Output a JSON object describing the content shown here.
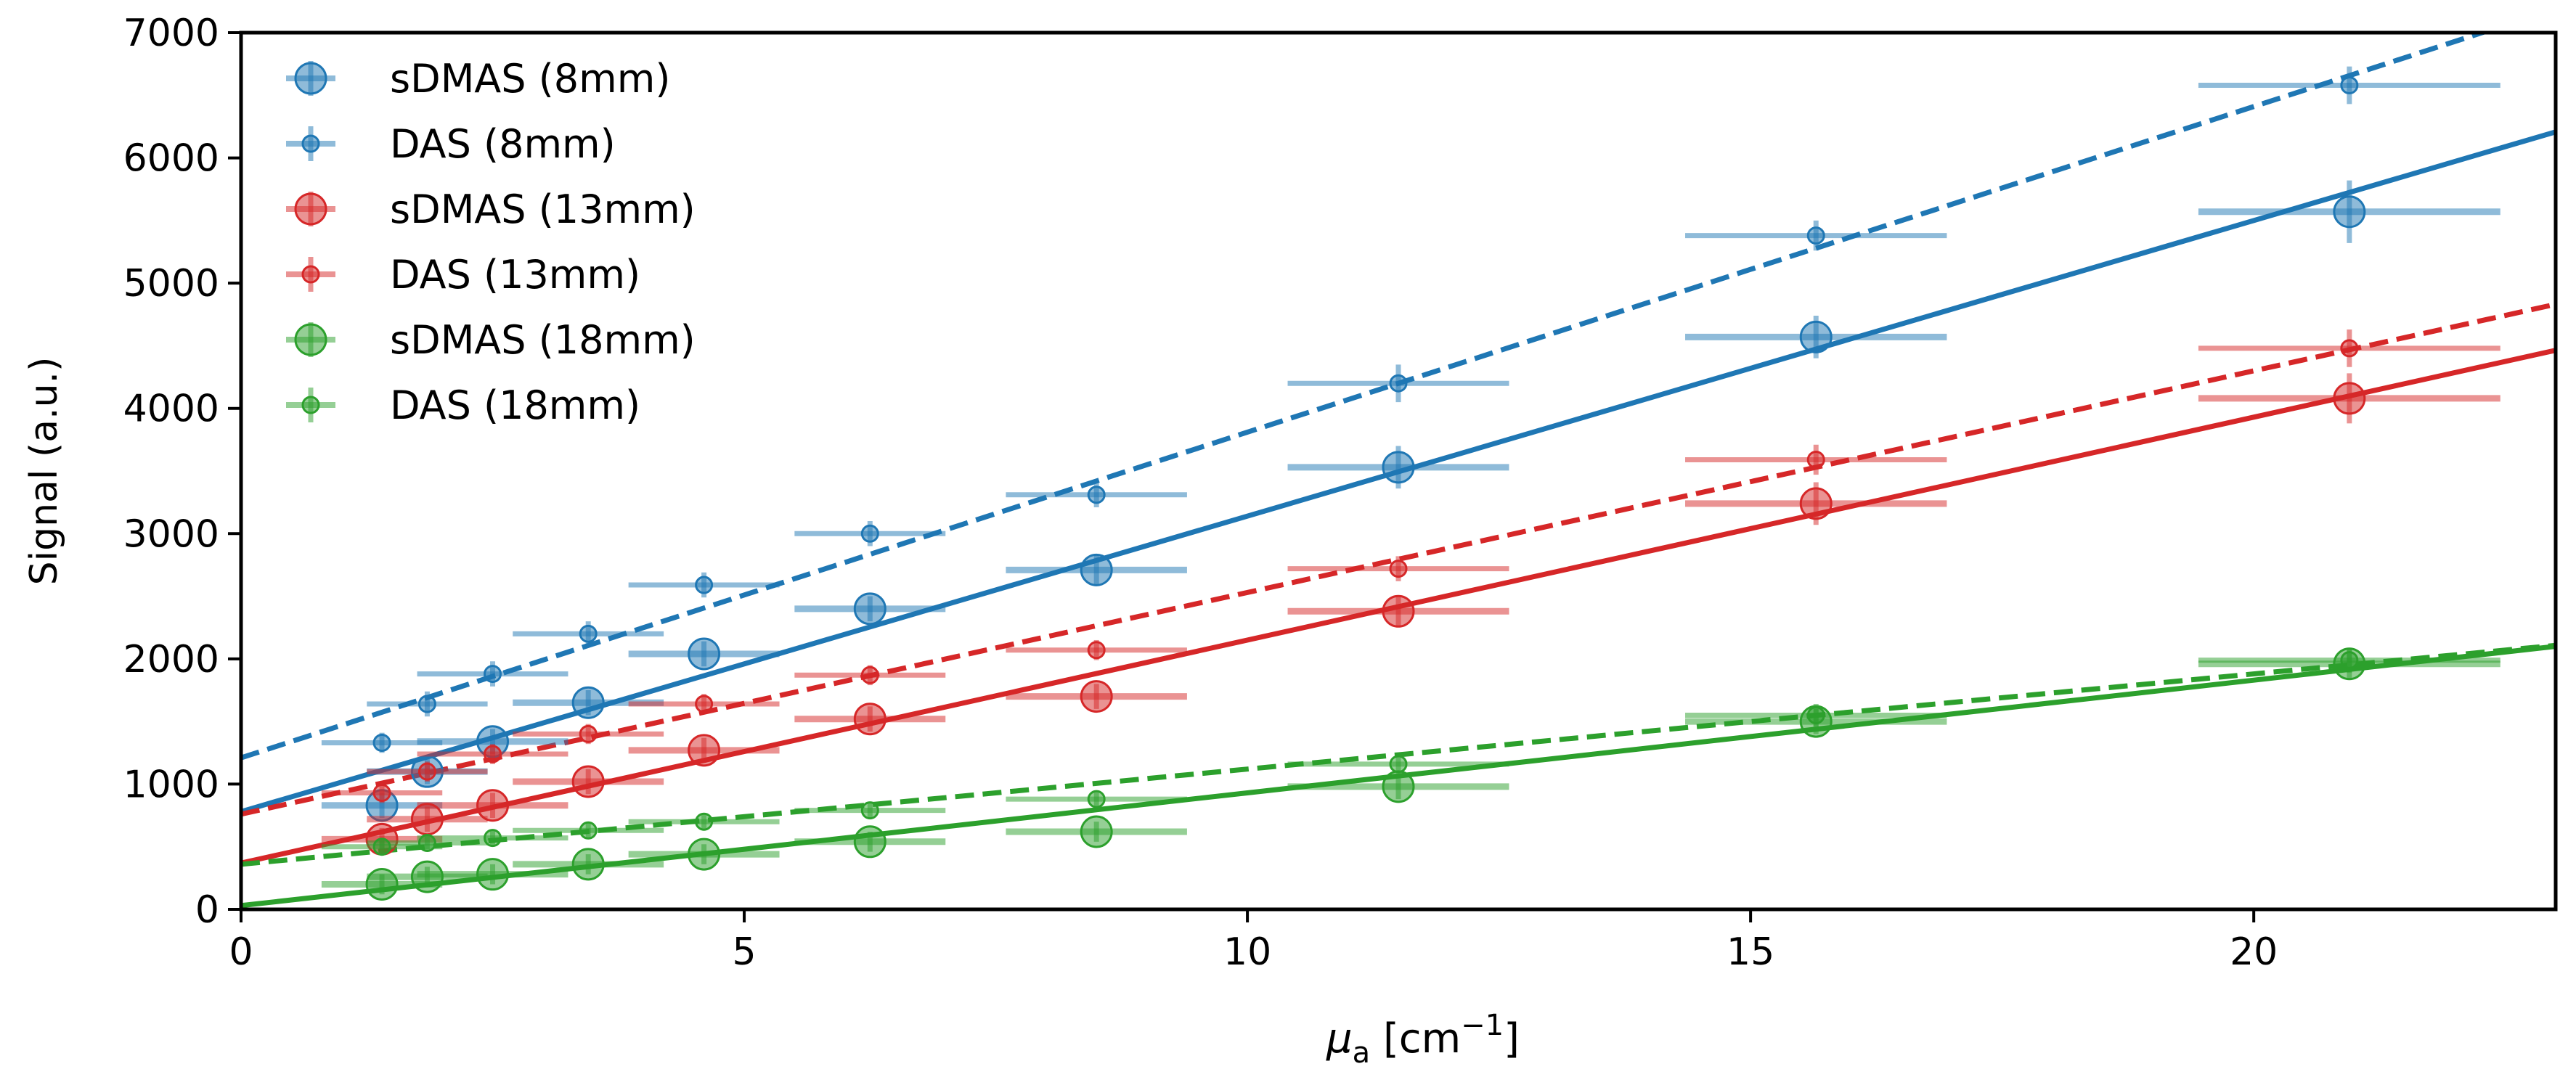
{
  "chart_data": {
    "type": "scatter",
    "xlabel": "μ",
    "xlabel_sub": "a",
    "xlabel_unit_open": " [cm",
    "xlabel_unit_sup": "−1",
    "xlabel_unit_close": "]",
    "ylabel": "Signal (a.u.)",
    "xlim": [
      0,
      23
    ],
    "ylim": [
      0,
      7000
    ],
    "xticks": [
      0,
      5,
      10,
      15,
      20
    ],
    "xtick_labels": [
      "0",
      "5",
      "10",
      "15",
      "20"
    ],
    "yticks": [
      0,
      1000,
      2000,
      3000,
      4000,
      5000,
      6000,
      7000
    ],
    "ytick_labels": [
      "0",
      "1000",
      "2000",
      "3000",
      "4000",
      "5000",
      "6000",
      "7000"
    ],
    "legend_position": "top-left",
    "series": [
      {
        "name": "sDMAS (8mm)",
        "color": "#1f77b4",
        "marker": "large",
        "fit_style": "solid",
        "fit": {
          "intercept": 780,
          "slope": 236
        },
        "points": [
          {
            "x": 1.4,
            "y": 830,
            "xerr": 0.6,
            "yerr": 100
          },
          {
            "x": 1.85,
            "y": 1100,
            "xerr": 0.6,
            "yerr": 100
          },
          {
            "x": 2.5,
            "y": 1340,
            "xerr": 0.75,
            "yerr": 100
          },
          {
            "x": 3.45,
            "y": 1650,
            "xerr": 0.75,
            "yerr": 100
          },
          {
            "x": 4.6,
            "y": 2040,
            "xerr": 0.75,
            "yerr": 100
          },
          {
            "x": 6.25,
            "y": 2400,
            "xerr": 0.75,
            "yerr": 100
          },
          {
            "x": 8.5,
            "y": 2710,
            "xerr": 0.9,
            "yerr": 120
          },
          {
            "x": 11.5,
            "y": 3530,
            "xerr": 1.1,
            "yerr": 170
          },
          {
            "x": 15.65,
            "y": 4570,
            "xerr": 1.3,
            "yerr": 170
          },
          {
            "x": 20.95,
            "y": 5570,
            "xerr": 1.5,
            "yerr": 250
          }
        ]
      },
      {
        "name": "DAS (8mm)",
        "color": "#1f77b4",
        "marker": "small",
        "fit_style": "dashed",
        "fit": {
          "intercept": 1210,
          "slope": 260
        },
        "points": [
          {
            "x": 1.4,
            "y": 1330,
            "xerr": 0.6,
            "yerr": 80
          },
          {
            "x": 1.85,
            "y": 1640,
            "xerr": 0.6,
            "yerr": 100
          },
          {
            "x": 2.5,
            "y": 1880,
            "xerr": 0.75,
            "yerr": 100
          },
          {
            "x": 3.45,
            "y": 2200,
            "xerr": 0.75,
            "yerr": 100
          },
          {
            "x": 4.6,
            "y": 2590,
            "xerr": 0.75,
            "yerr": 100
          },
          {
            "x": 6.25,
            "y": 3000,
            "xerr": 0.75,
            "yerr": 100
          },
          {
            "x": 8.5,
            "y": 3310,
            "xerr": 0.9,
            "yerr": 100
          },
          {
            "x": 11.5,
            "y": 4200,
            "xerr": 1.1,
            "yerr": 150
          },
          {
            "x": 15.65,
            "y": 5380,
            "xerr": 1.3,
            "yerr": 120
          },
          {
            "x": 20.95,
            "y": 6580,
            "xerr": 1.5,
            "yerr": 150
          }
        ]
      },
      {
        "name": "sDMAS (13mm)",
        "color": "#d62728",
        "marker": "large",
        "fit_style": "solid",
        "fit": {
          "intercept": 370,
          "slope": 178
        },
        "points": [
          {
            "x": 1.4,
            "y": 560,
            "xerr": 0.6,
            "yerr": 90
          },
          {
            "x": 1.85,
            "y": 720,
            "xerr": 0.6,
            "yerr": 100
          },
          {
            "x": 2.5,
            "y": 830,
            "xerr": 0.75,
            "yerr": 100
          },
          {
            "x": 3.45,
            "y": 1020,
            "xerr": 0.75,
            "yerr": 100
          },
          {
            "x": 4.6,
            "y": 1270,
            "xerr": 0.75,
            "yerr": 100
          },
          {
            "x": 6.25,
            "y": 1520,
            "xerr": 0.75,
            "yerr": 100
          },
          {
            "x": 8.5,
            "y": 1700,
            "xerr": 0.9,
            "yerr": 100
          },
          {
            "x": 11.5,
            "y": 2380,
            "xerr": 1.1,
            "yerr": 120
          },
          {
            "x": 15.65,
            "y": 3240,
            "xerr": 1.3,
            "yerr": 170
          },
          {
            "x": 20.95,
            "y": 4080,
            "xerr": 1.5,
            "yerr": 200
          }
        ]
      },
      {
        "name": "DAS (13mm)",
        "color": "#d62728",
        "marker": "small",
        "fit_style": "dashed",
        "fit": {
          "intercept": 760,
          "slope": 177
        },
        "points": [
          {
            "x": 1.4,
            "y": 930,
            "xerr": 0.6,
            "yerr": 80
          },
          {
            "x": 1.85,
            "y": 1100,
            "xerr": 0.6,
            "yerr": 80
          },
          {
            "x": 2.5,
            "y": 1240,
            "xerr": 0.75,
            "yerr": 80
          },
          {
            "x": 3.45,
            "y": 1400,
            "xerr": 0.75,
            "yerr": 80
          },
          {
            "x": 4.6,
            "y": 1640,
            "xerr": 0.75,
            "yerr": 80
          },
          {
            "x": 6.25,
            "y": 1870,
            "xerr": 0.75,
            "yerr": 80
          },
          {
            "x": 8.5,
            "y": 2070,
            "xerr": 0.9,
            "yerr": 80
          },
          {
            "x": 11.5,
            "y": 2720,
            "xerr": 1.1,
            "yerr": 100
          },
          {
            "x": 15.65,
            "y": 3590,
            "xerr": 1.3,
            "yerr": 120
          },
          {
            "x": 20.95,
            "y": 4480,
            "xerr": 1.5,
            "yerr": 150
          }
        ]
      },
      {
        "name": "sDMAS (18mm)",
        "color": "#2ca02c",
        "marker": "large",
        "fit_style": "solid",
        "fit": {
          "intercept": 30,
          "slope": 90
        },
        "points": [
          {
            "x": 1.4,
            "y": 200,
            "xerr": 0.6,
            "yerr": 80
          },
          {
            "x": 1.85,
            "y": 260,
            "xerr": 0.6,
            "yerr": 80
          },
          {
            "x": 2.5,
            "y": 280,
            "xerr": 0.75,
            "yerr": 80
          },
          {
            "x": 3.45,
            "y": 360,
            "xerr": 0.75,
            "yerr": 80
          },
          {
            "x": 4.6,
            "y": 440,
            "xerr": 0.75,
            "yerr": 80
          },
          {
            "x": 6.25,
            "y": 540,
            "xerr": 0.75,
            "yerr": 80
          },
          {
            "x": 8.5,
            "y": 620,
            "xerr": 0.9,
            "yerr": 80
          },
          {
            "x": 11.5,
            "y": 980,
            "xerr": 1.1,
            "yerr": 100
          },
          {
            "x": 15.65,
            "y": 1500,
            "xerr": 1.3,
            "yerr": 100
          },
          {
            "x": 20.95,
            "y": 1960,
            "xerr": 1.5,
            "yerr": 120
          }
        ]
      },
      {
        "name": "DAS (18mm)",
        "color": "#2ca02c",
        "marker": "small",
        "fit_style": "dashed",
        "fit": {
          "intercept": 360,
          "slope": 76
        },
        "points": [
          {
            "x": 1.4,
            "y": 500,
            "xerr": 0.6,
            "yerr": 60
          },
          {
            "x": 1.85,
            "y": 530,
            "xerr": 0.6,
            "yerr": 60
          },
          {
            "x": 2.5,
            "y": 570,
            "xerr": 0.75,
            "yerr": 60
          },
          {
            "x": 3.45,
            "y": 630,
            "xerr": 0.75,
            "yerr": 60
          },
          {
            "x": 4.6,
            "y": 700,
            "xerr": 0.75,
            "yerr": 60
          },
          {
            "x": 6.25,
            "y": 790,
            "xerr": 0.75,
            "yerr": 60
          },
          {
            "x": 8.5,
            "y": 880,
            "xerr": 0.9,
            "yerr": 70
          },
          {
            "x": 11.5,
            "y": 1160,
            "xerr": 1.1,
            "yerr": 80
          },
          {
            "x": 15.65,
            "y": 1550,
            "xerr": 1.3,
            "yerr": 90
          },
          {
            "x": 20.95,
            "y": 1990,
            "xerr": 1.5,
            "yerr": 100
          }
        ]
      }
    ]
  }
}
